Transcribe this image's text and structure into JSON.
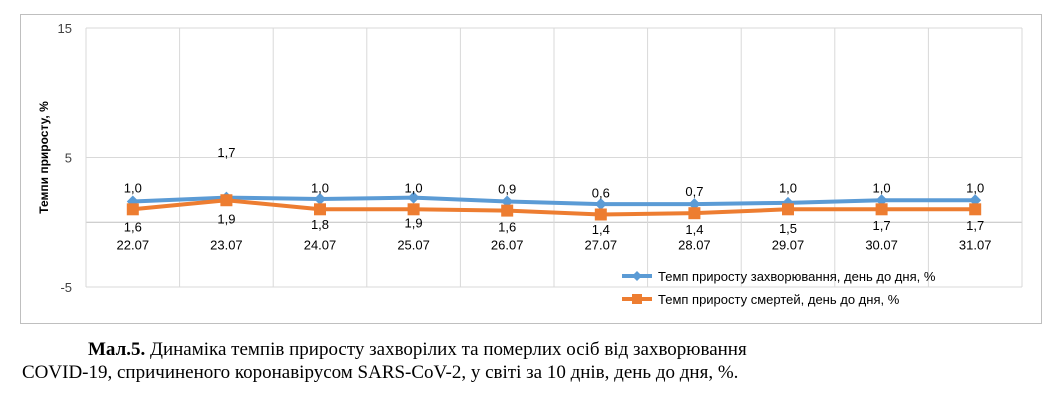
{
  "chart_data": {
    "type": "line",
    "title": "",
    "xlabel": "",
    "ylabel": "Темпи приросту, %",
    "ylim": [
      -5,
      15
    ],
    "yticks": [
      "15",
      "5",
      "-5"
    ],
    "categories": [
      "22.07",
      "23.07",
      "24.07",
      "25.07",
      "26.07",
      "27.07",
      "28.07",
      "29.07",
      "30.07",
      "31.07"
    ],
    "series": [
      {
        "name": "Темп приросту захворювання, день до дня, %",
        "color": "#5b9bd5",
        "marker": "diamond",
        "values": [
          1.6,
          1.9,
          1.8,
          1.9,
          1.6,
          1.4,
          1.4,
          1.5,
          1.7,
          1.7
        ],
        "labels": [
          "1,6",
          "1,9",
          "1,8",
          "1,9",
          "1,6",
          "1,4",
          "1,4",
          "1,5",
          "1,7",
          "1,7"
        ]
      },
      {
        "name": "Темп приросту смертей, день до дня, %",
        "color": "#ed7d31",
        "marker": "square",
        "values": [
          1.0,
          1.7,
          1.0,
          1.0,
          0.9,
          0.6,
          0.7,
          1.0,
          1.0,
          1.0
        ],
        "labels": [
          "1,0",
          "1,7",
          "1,0",
          "1,0",
          "0,9",
          "0,6",
          "0,7",
          "1,0",
          "1,0",
          "1,0"
        ]
      }
    ],
    "grid": true,
    "legend": "bottom-right"
  },
  "caption": {
    "label": "Мал.5.",
    "line1": " Динаміка темпів приросту захворілих та померлих осіб від захворювання",
    "line2": "COVID-19, спричиненого коронавірусом SARS-CoV-2, у світі за 10 днів, день до дня, %."
  }
}
